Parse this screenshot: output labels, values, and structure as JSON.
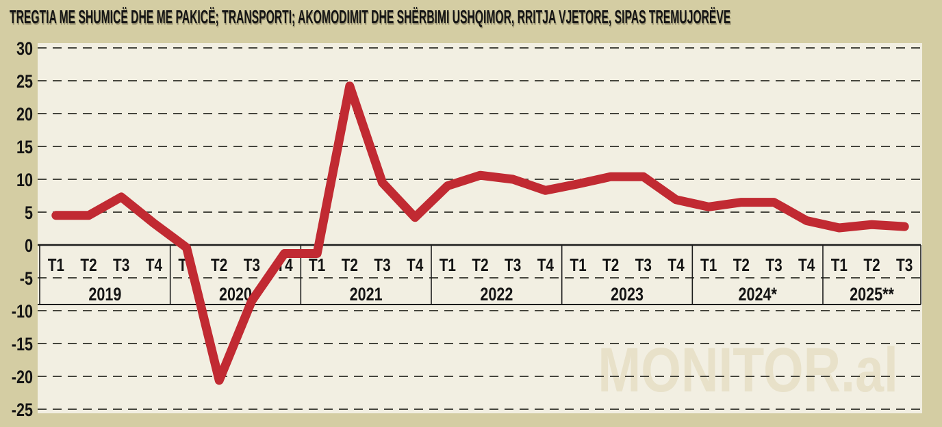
{
  "title": "TREGTIA ME SHUMICË DHE ME PAKICË; TRANSPORTI; AKOMODIMIT DHE SHËRBIMI USHQIMOR, RRITJA VJETORE, SIPAS TREMUJORËVE",
  "watermark": "MONITOR.al",
  "colors": {
    "outer_background": "#d4cda3",
    "plot_background": "#f2efe2",
    "gridline": "#45453d",
    "axis": "#1c1c1c",
    "text": "#141414",
    "line": "#c12a32",
    "watermark": "#e8e1c9"
  },
  "chart_data": {
    "type": "line",
    "title": "TREGTIA ME SHUMICË DHE ME PAKICË; TRANSPORTI; AKOMODIMIT DHE SHËRBIMI USHQIMOR, RRITJA VJETORE, SIPAS TREMUJORËVE",
    "unit": "%",
    "ylim": [
      -25,
      30
    ],
    "y_ticks": [
      30,
      25,
      20,
      15,
      10,
      5,
      0,
      -5,
      -10,
      -15,
      -20,
      -25
    ],
    "grid": "horizontal-dashed",
    "legend": "none",
    "years": [
      {
        "label": "2019",
        "quarters": [
          "T1",
          "T2",
          "T3",
          "T4"
        ],
        "values": [
          4.5,
          4.5,
          7.3,
          3.3
        ]
      },
      {
        "label": "2020",
        "quarters": [
          "T1",
          "T2",
          "T3",
          "T4"
        ],
        "values": [
          -0.4,
          -20.6,
          -8.5,
          -1.3
        ]
      },
      {
        "label": "2021",
        "quarters": [
          "T1",
          "T2",
          "T3",
          "T4"
        ],
        "values": [
          -1.3,
          24.2,
          9.5,
          4.2
        ]
      },
      {
        "label": "2022",
        "quarters": [
          "T1",
          "T2",
          "T3",
          "T4"
        ],
        "values": [
          9.0,
          10.6,
          10.0,
          8.3
        ]
      },
      {
        "label": "2023",
        "quarters": [
          "T1",
          "T2",
          "T3",
          "T4"
        ],
        "values": [
          9.3,
          10.4,
          10.4,
          6.9
        ]
      },
      {
        "label": "2024*",
        "quarters": [
          "T1",
          "T2",
          "T3",
          "T4"
        ],
        "values": [
          5.8,
          6.5,
          6.5,
          3.7
        ]
      },
      {
        "label": "2025**",
        "quarters": [
          "T1",
          "T2",
          "T3"
        ],
        "values": [
          2.6,
          3.1,
          2.8
        ]
      }
    ]
  }
}
